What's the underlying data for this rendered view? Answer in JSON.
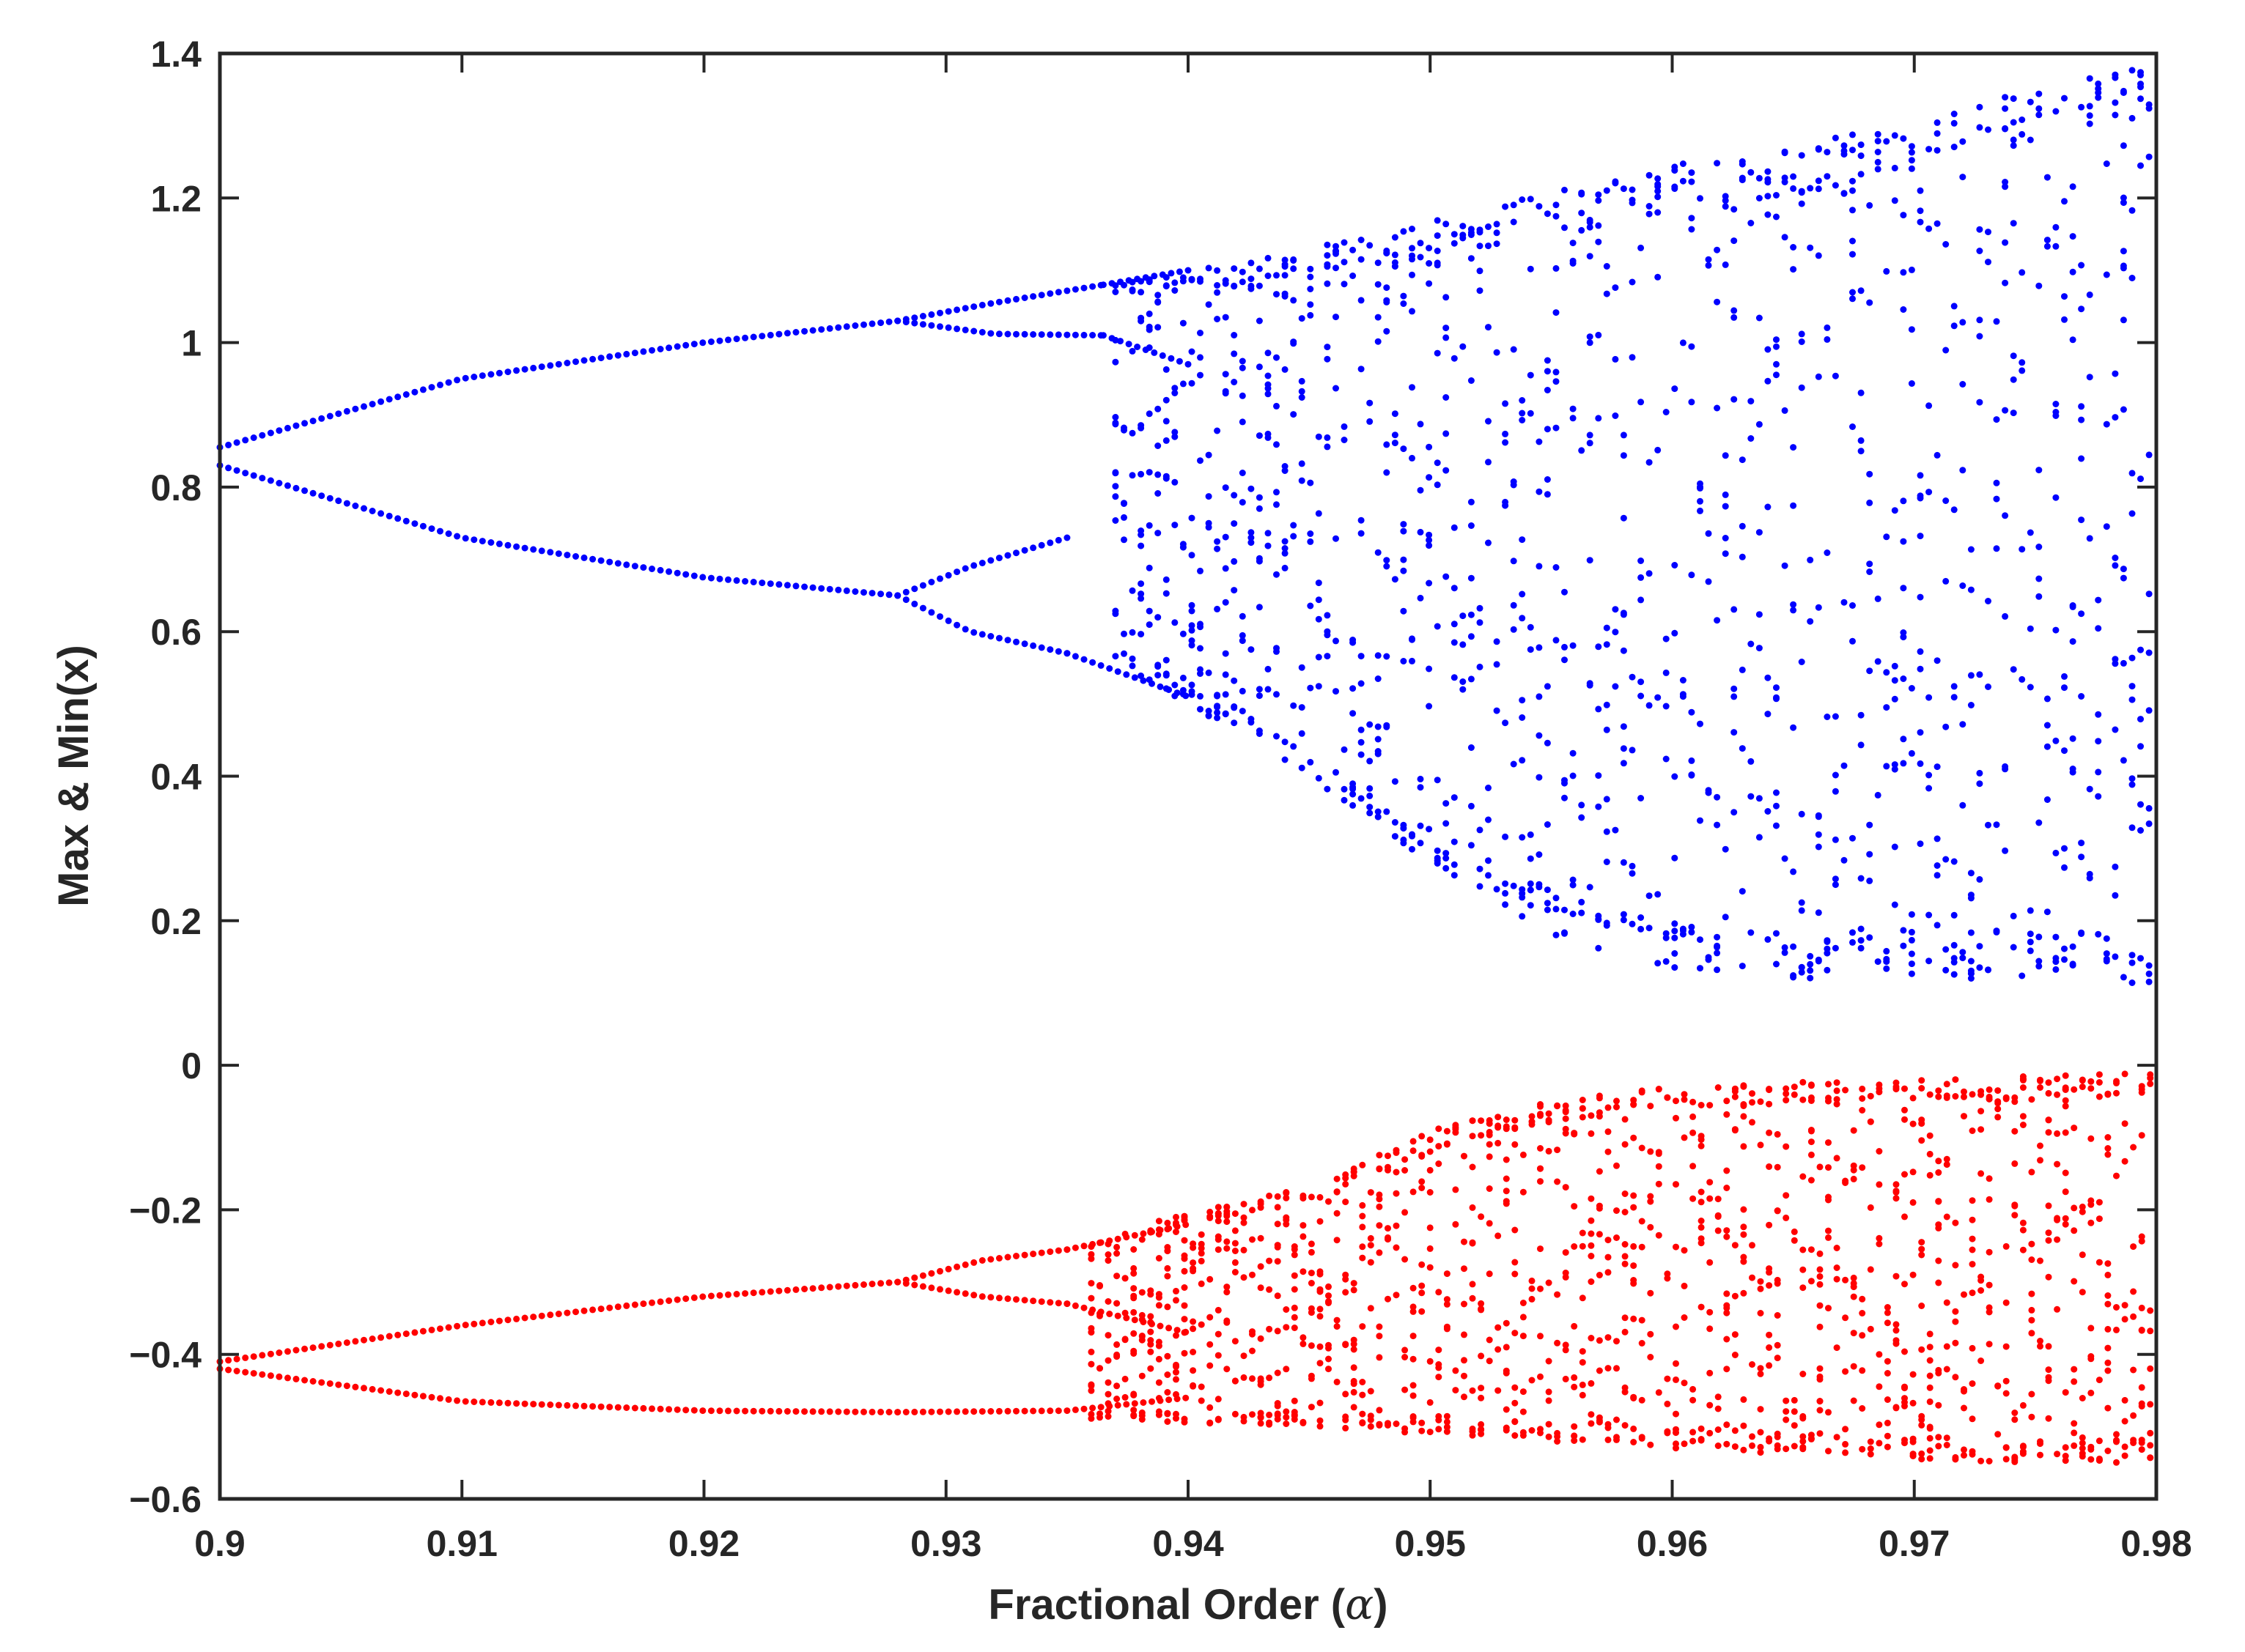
{
  "chart_data": {
    "type": "scatter",
    "title": "",
    "xlabel": "Fractional Order (",
    "xlabel_symbol": "α",
    "xlabel_close": ")",
    "ylabel": "Max & Min(x)",
    "xlim": [
      0.9,
      0.98
    ],
    "ylim": [
      -0.6,
      1.4
    ],
    "x_ticks": [
      0.9,
      0.91,
      0.92,
      0.93,
      0.94,
      0.95,
      0.96,
      0.97,
      0.98
    ],
    "x_tick_labels": [
      "0.9",
      "0.91",
      "0.92",
      "0.93",
      "0.94",
      "0.95",
      "0.96",
      "0.97",
      "0.98"
    ],
    "y_ticks": [
      -0.6,
      -0.4,
      -0.2,
      0,
      0.2,
      0.4,
      0.6,
      0.8,
      1,
      1.2,
      1.4
    ],
    "y_tick_labels": [
      "−0.6",
      "−0.4",
      "−0.2",
      "0",
      "0.2",
      "0.4",
      "0.6",
      "0.8",
      "1",
      "1.2",
      "1.4"
    ],
    "grid": false,
    "legend": "none",
    "series": [
      {
        "role": "maxima",
        "color": "#0000ff",
        "periodic_branches": [
          {
            "x": [
              0.9,
              0.91,
              0.92,
              0.928
            ],
            "y": [
              0.855,
              0.95,
              1.0,
              1.03
            ]
          },
          {
            "x": [
              0.9,
              0.91,
              0.92,
              0.928
            ],
            "y": [
              0.83,
              0.73,
              0.675,
              0.65
            ]
          },
          {
            "x": [
              0.928,
              0.932,
              0.9365
            ],
            "y": [
              1.03,
              1.055,
              1.08
            ]
          },
          {
            "x": [
              0.928,
              0.932,
              0.9365
            ],
            "y": [
              1.03,
              1.012,
              1.01
            ]
          },
          {
            "x": [
              0.928,
              0.931,
              0.935
            ],
            "y": [
              0.65,
              0.69,
              0.73
            ]
          },
          {
            "x": [
              0.928,
              0.931,
              0.935
            ],
            "y": [
              0.65,
              0.6,
              0.57
            ]
          },
          {
            "x": [
              0.9365,
              0.94
            ],
            "y": [
              1.08,
              1.1
            ]
          },
          {
            "x": [
              0.9365,
              0.94
            ],
            "y": [
              1.01,
              0.97
            ]
          },
          {
            "x": [
              0.935,
              0.94
            ],
            "y": [
              0.57,
              0.51
            ]
          }
        ],
        "chaotic_band": {
          "x": [
            0.937,
            0.94,
            0.945,
            0.95,
            0.955,
            0.96,
            0.965,
            0.97,
            0.975,
            0.98
          ],
          "upper": [
            1.09,
            1.1,
            1.13,
            1.17,
            1.21,
            1.25,
            1.27,
            1.31,
            1.35,
            1.39
          ],
          "lower": [
            0.55,
            0.5,
            0.4,
            0.28,
            0.18,
            0.13,
            0.12,
            0.12,
            0.12,
            0.11
          ]
        }
      },
      {
        "role": "minima",
        "color": "#ff0000",
        "periodic_branches": [
          {
            "x": [
              0.9,
              0.91,
              0.92,
              0.928
            ],
            "y": [
              -0.41,
              -0.36,
              -0.32,
              -0.3
            ]
          },
          {
            "x": [
              0.9,
              0.91,
              0.92,
              0.928
            ],
            "y": [
              -0.42,
              -0.465,
              -0.478,
              -0.48
            ]
          },
          {
            "x": [
              0.928,
              0.9315,
              0.935
            ],
            "y": [
              -0.3,
              -0.27,
              -0.255
            ]
          },
          {
            "x": [
              0.928,
              0.9315,
              0.935
            ],
            "y": [
              -0.3,
              -0.32,
              -0.33
            ]
          },
          {
            "x": [
              0.928,
              0.935,
              0.94
            ],
            "y": [
              -0.48,
              -0.478,
              -0.46
            ]
          },
          {
            "x": [
              0.935,
              0.94
            ],
            "y": [
              -0.255,
              -0.22
            ]
          },
          {
            "x": [
              0.935,
              0.94
            ],
            "y": [
              -0.33,
              -0.37
            ]
          }
        ],
        "chaotic_band": {
          "x": [
            0.936,
            0.94,
            0.945,
            0.95,
            0.955,
            0.96,
            0.965,
            0.97,
            0.975,
            0.98
          ],
          "upper": [
            -0.25,
            -0.2,
            -0.17,
            -0.09,
            -0.05,
            -0.03,
            -0.02,
            -0.02,
            -0.015,
            -0.01
          ],
          "lower": [
            -0.49,
            -0.495,
            -0.5,
            -0.51,
            -0.52,
            -0.53,
            -0.54,
            -0.545,
            -0.55,
            -0.55
          ]
        }
      }
    ]
  }
}
